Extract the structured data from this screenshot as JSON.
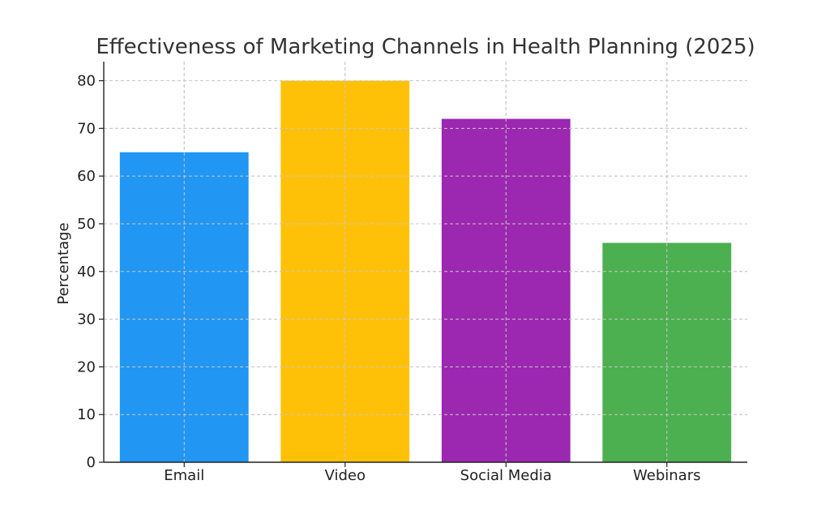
{
  "chart_data": {
    "type": "bar",
    "title": "Effectiveness of Marketing Channels in Health Planning (2025)",
    "xlabel": "",
    "ylabel": "Percentage",
    "categories": [
      "Email",
      "Video",
      "Social Media",
      "Webinars"
    ],
    "values": [
      65,
      80,
      72,
      46
    ],
    "colors": [
      "#2196F3",
      "#FFC107",
      "#9C27B0",
      "#4CAF50"
    ],
    "ylim": [
      0,
      84
    ],
    "yticks": [
      0,
      10,
      20,
      30,
      40,
      50,
      60,
      70,
      80
    ],
    "grid": true,
    "legend": "none"
  }
}
